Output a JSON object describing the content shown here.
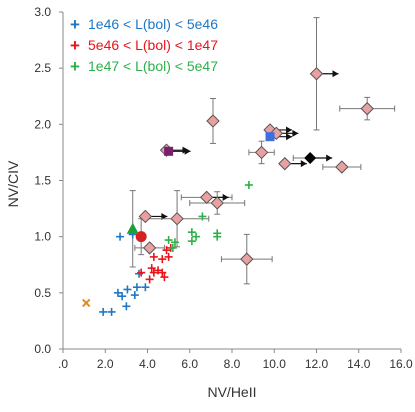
{
  "chart_data": {
    "type": "scatter",
    "xlabel": "NV/HeII",
    "ylabel": "NV/CIV",
    "xlim": [
      0,
      16
    ],
    "ylim": [
      0,
      3
    ],
    "x_ticks": [
      0,
      2,
      4,
      6,
      8,
      10,
      12,
      14,
      16
    ],
    "x_tick_labels": [
      ".0",
      "2.0",
      "4.0",
      "6.0",
      "8.0",
      "10.0",
      "12.0",
      "14.0",
      "16.0"
    ],
    "y_ticks": [
      0,
      0.5,
      1,
      1.5,
      2,
      2.5,
      3
    ],
    "y_tick_labels": [
      "0.0",
      "0.5",
      "1.0",
      "1.5",
      "2.0",
      "2.5",
      "3.0"
    ],
    "grid": false,
    "legend": {
      "placement": "top-left",
      "entries": [
        {
          "symbol": "+",
          "text": "1e46  < L(bol)  < 5e46",
          "color": "#1f77c4"
        },
        {
          "symbol": "+",
          "text": "5e46  < L(bol)  < 1e47",
          "color": "#e8141a"
        },
        {
          "symbol": "+",
          "text": "1e47  < L(bol)  < 5e47",
          "color": "#2cb04a"
        }
      ]
    },
    "series": [
      {
        "marker": "plus",
        "color": "#1f77c4",
        "points": [
          {
            "x": 1.9,
            "y": 0.33
          },
          {
            "x": 2.3,
            "y": 0.33
          },
          {
            "x": 2.6,
            "y": 0.5
          },
          {
            "x": 2.8,
            "y": 0.47
          },
          {
            "x": 3.0,
            "y": 0.38
          },
          {
            "x": 3.05,
            "y": 0.53
          },
          {
            "x": 3.4,
            "y": 0.48
          },
          {
            "x": 3.5,
            "y": 0.55
          },
          {
            "x": 2.7,
            "y": 1.0
          },
          {
            "x": 3.3,
            "y": 1.02
          },
          {
            "x": 3.6,
            "y": 0.67
          },
          {
            "x": 3.9,
            "y": 0.55
          }
        ]
      },
      {
        "marker": "plus",
        "color": "#e8141a",
        "points": [
          {
            "x": 3.7,
            "y": 0.68
          },
          {
            "x": 4.1,
            "y": 0.62
          },
          {
            "x": 4.2,
            "y": 0.72
          },
          {
            "x": 4.3,
            "y": 0.68
          },
          {
            "x": 4.5,
            "y": 0.7
          },
          {
            "x": 4.7,
            "y": 0.68
          },
          {
            "x": 4.8,
            "y": 0.64
          },
          {
            "x": 4.7,
            "y": 0.8
          },
          {
            "x": 5.0,
            "y": 0.82
          },
          {
            "x": 4.9,
            "y": 0.88
          },
          {
            "x": 5.1,
            "y": 0.9
          },
          {
            "x": 4.3,
            "y": 0.82
          }
        ]
      },
      {
        "marker": "plus",
        "color": "#2cb04a",
        "points": [
          {
            "x": 5.3,
            "y": 0.95
          },
          {
            "x": 5.2,
            "y": 0.9
          },
          {
            "x": 6.1,
            "y": 1.04
          },
          {
            "x": 6.1,
            "y": 0.96
          },
          {
            "x": 6.3,
            "y": 1.0
          },
          {
            "x": 6.6,
            "y": 1.18
          },
          {
            "x": 7.3,
            "y": 1.03
          },
          {
            "x": 7.3,
            "y": 1.0
          },
          {
            "x": 8.8,
            "y": 1.46
          },
          {
            "x": 5.0,
            "y": 0.97
          }
        ]
      },
      {
        "marker": "diamond",
        "color": "#e8a0a0",
        "points": [
          {
            "x": 3.9,
            "y": 1.18,
            "lower_limit_x": true
          },
          {
            "x": 4.1,
            "y": 0.9,
            "xerr": 0.7
          },
          {
            "x": 5.4,
            "y": 1.16,
            "xerr": 1.5,
            "yerr": 0.25
          },
          {
            "x": 4.9,
            "y": 1.77,
            "lower_limit_x": true
          },
          {
            "x": 7.1,
            "y": 2.03,
            "yerr": 0.2
          },
          {
            "x": 6.8,
            "y": 1.35,
            "xerr": 1.2,
            "lower_limit_x": true
          },
          {
            "x": 7.3,
            "y": 1.3,
            "xerr": 1.3,
            "yerr": 0.1
          },
          {
            "x": 8.7,
            "y": 0.8,
            "xerr": 1.2,
            "yerr": 0.22
          },
          {
            "x": 9.4,
            "y": 1.75,
            "xerr": 0.6,
            "yerr": 0.1
          },
          {
            "x": 9.8,
            "y": 1.95,
            "lower_limit_x": true
          },
          {
            "x": 10.1,
            "y": 1.92,
            "lower_limit_x": true
          },
          {
            "x": 10.5,
            "y": 1.65,
            "lower_limit_x": true
          },
          {
            "x": 12.0,
            "y": 2.45,
            "yerr": 0.5,
            "lower_limit_x": true
          },
          {
            "x": 13.2,
            "y": 1.62,
            "xerr": 0.9
          },
          {
            "x": 14.4,
            "y": 2.14,
            "xerr": 1.3,
            "yerr": 0.1
          }
        ]
      },
      {
        "marker": "square",
        "color": "#3d6fe0",
        "points": [
          {
            "x": 9.8,
            "y": 1.89,
            "lower_limit_x": true
          }
        ]
      },
      {
        "marker": "square",
        "color": "#7a1f6e",
        "points": [
          {
            "x": 5.0,
            "y": 1.76,
            "lower_limit_x": true
          }
        ]
      },
      {
        "marker": "diamond-large",
        "color": "#000000",
        "points": [
          {
            "x": 11.7,
            "y": 1.7,
            "xerr": 0.8,
            "lower_limit_x": true
          }
        ]
      },
      {
        "marker": "circle",
        "color": "#d62020",
        "points": [
          {
            "x": 3.7,
            "y": 1.0,
            "yerr": 0.16
          }
        ]
      },
      {
        "marker": "triangle",
        "color": "#1e9e3a",
        "points": [
          {
            "x": 3.3,
            "y": 1.07,
            "yerr": 0.34
          }
        ]
      },
      {
        "marker": "x",
        "color": "#e08a20",
        "points": [
          {
            "x": 1.1,
            "y": 0.41
          }
        ]
      }
    ]
  }
}
